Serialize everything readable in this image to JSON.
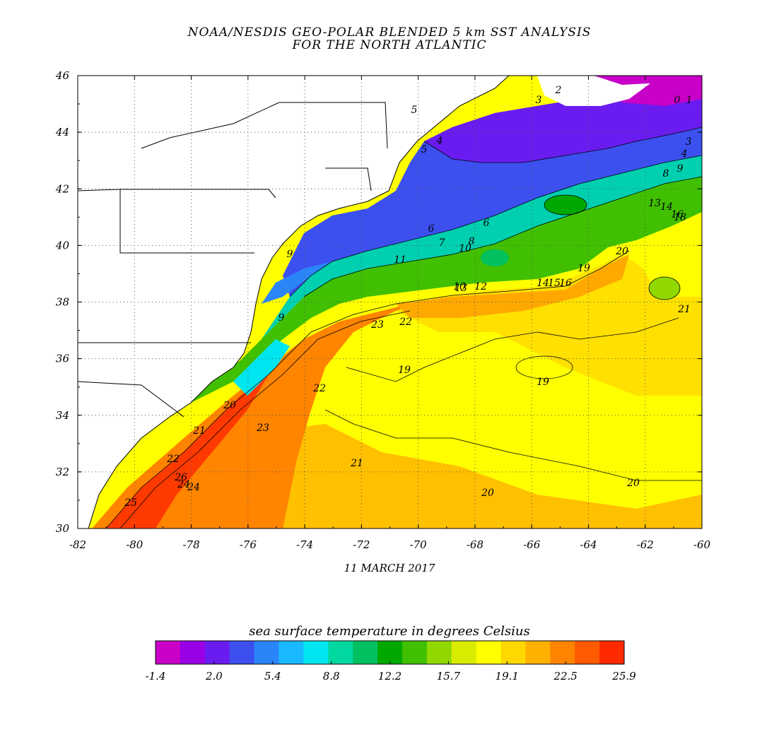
{
  "title": {
    "line1": "NOAA/NESDIS GEO-POLAR BLENDED 5 km SST ANALYSIS",
    "line2": "FOR THE NORTH ATLANTIC"
  },
  "date": "11 MARCH 2017",
  "axes": {
    "lon_ticks": [
      "-82",
      "-80",
      "-78",
      "-76",
      "-74",
      "-72",
      "-70",
      "-68",
      "-66",
      "-64",
      "-62",
      "-60"
    ],
    "lat_ticks": [
      "46",
      "44",
      "42",
      "40",
      "38",
      "36",
      "34",
      "32",
      "30"
    ],
    "lon_range": [
      -82,
      -60
    ],
    "lat_range": [
      30,
      46
    ],
    "grid": "dotted"
  },
  "colorbar": {
    "title": "sea surface temperature in degrees Celsius",
    "tick_labels": [
      "-1.4",
      "2.0",
      "5.4",
      "8.8",
      "12.2",
      "15.7",
      "19.1",
      "22.5",
      "25.9"
    ],
    "colors": [
      "#c800c8",
      "#9a00e6",
      "#6a1cf0",
      "#3c50f0",
      "#2a86f8",
      "#1ab8ff",
      "#00e6f0",
      "#00d8a0",
      "#00c060",
      "#00a800",
      "#40c000",
      "#90d800",
      "#d8ec00",
      "#ffff00",
      "#ffd800",
      "#ffb000",
      "#ff8400",
      "#ff5a00",
      "#ff2a00"
    ]
  },
  "contour_labels": [
    "0",
    "1",
    "2",
    "3",
    "4",
    "5",
    "6",
    "6",
    "7",
    "8",
    "9",
    "9",
    "10",
    "11",
    "12",
    "13",
    "14",
    "15",
    "16",
    "18",
    "19",
    "19",
    "20",
    "20",
    "20",
    "21",
    "21",
    "22",
    "22",
    "23",
    "24",
    "3",
    "4",
    "5",
    "8",
    "9",
    "10",
    "13",
    "14",
    "16",
    "19",
    "20",
    "21",
    "22",
    "23",
    "24",
    "25",
    "26"
  ]
}
